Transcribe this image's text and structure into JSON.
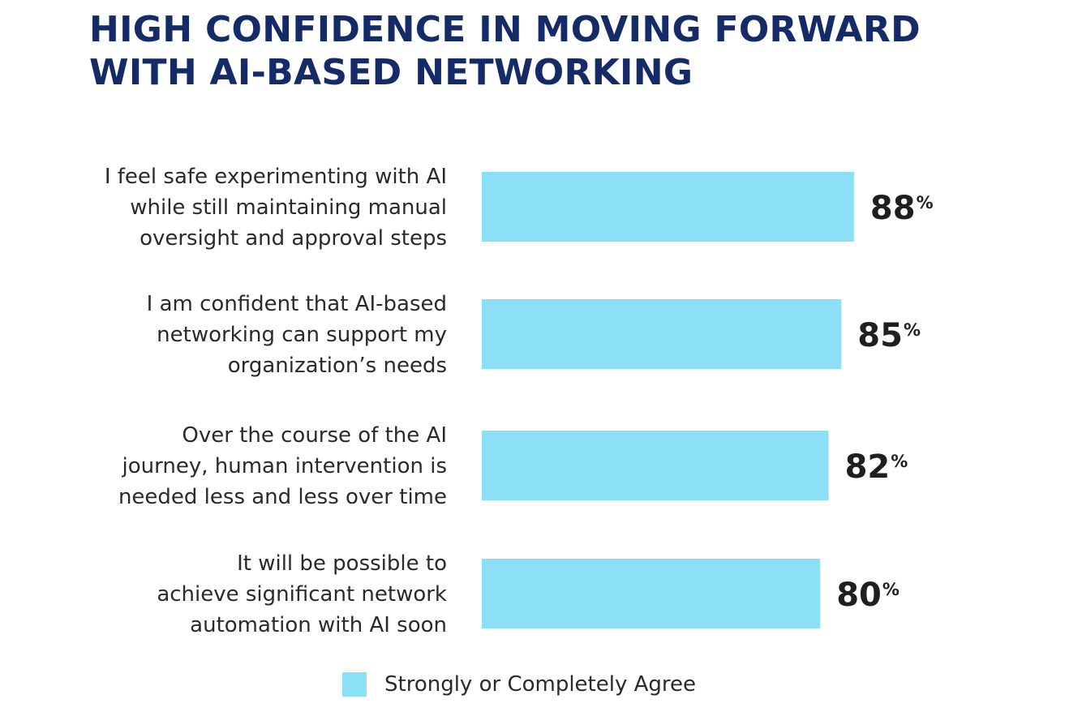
{
  "title_lines": [
    "HIGH CONFIDENCE IN MOVING FORWARD",
    "WITH AI-BASED NETWORKING"
  ],
  "colors": {
    "title": "#142b68",
    "bar": "#8be0f8",
    "text": "#2a2a2a",
    "value": "#1f1f1f"
  },
  "chart_data": {
    "type": "bar",
    "orientation": "horizontal",
    "unit": "%",
    "categories": [
      [
        "I feel safe experimenting with AI",
        "while still maintaining manual",
        "oversight and approval steps"
      ],
      [
        "I am confident that AI-based",
        "networking can support my",
        "organization’s needs"
      ],
      [
        "Over the course of the AI",
        "journey, human intervention is",
        "needed less and less over time"
      ],
      [
        "It will be possible to",
        "achieve significant network",
        "automation with AI soon"
      ]
    ],
    "series": [
      {
        "name": "Strongly or Completely Agree",
        "values": [
          88,
          85,
          82,
          80
        ]
      }
    ],
    "value_labels": [
      "88",
      "85",
      "82",
      "80"
    ],
    "xlim": [
      0,
      100
    ],
    "grid": false,
    "legend_position": "bottom"
  },
  "legend": {
    "label": "Strongly or Completely Agree"
  }
}
